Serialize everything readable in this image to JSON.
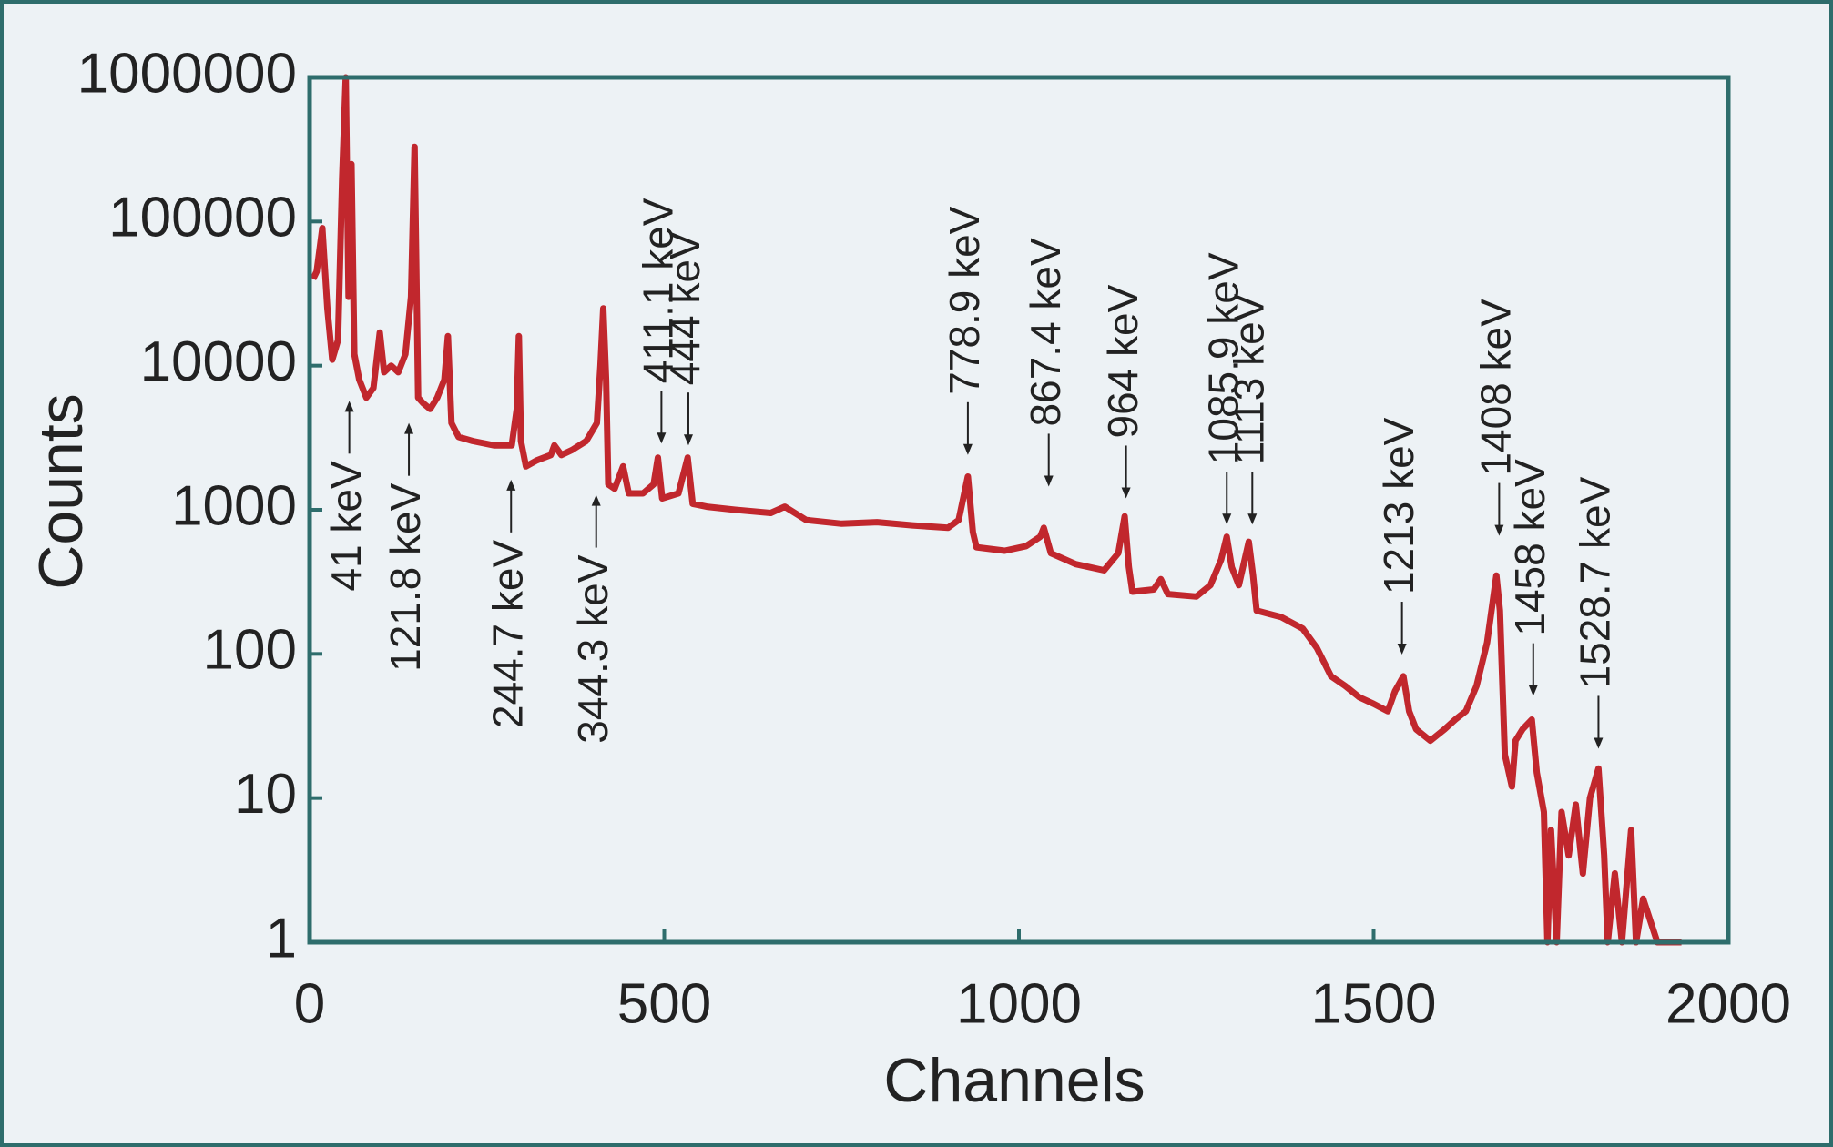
{
  "chart_data": {
    "type": "line",
    "xlabel": "Channels",
    "ylabel": "Counts",
    "log_y": true,
    "color": "#c1272d",
    "xlim": [
      0,
      2000
    ],
    "xticks": [
      0,
      500,
      1000,
      1500,
      2000
    ],
    "ylim": [
      1,
      1000000
    ],
    "yticks": [
      1,
      10,
      100,
      1000,
      10000,
      100000,
      1000000
    ],
    "x": [
      5,
      10,
      18,
      25,
      32,
      40,
      46,
      51,
      55,
      59,
      63,
      70,
      80,
      90,
      99,
      105,
      115,
      125,
      135,
      143,
      148,
      153,
      160,
      170,
      180,
      190,
      195,
      200,
      210,
      230,
      260,
      285,
      292,
      295,
      298,
      305,
      320,
      340,
      345,
      355,
      370,
      390,
      405,
      410,
      414,
      418,
      421,
      430,
      442,
      450,
      470,
      485,
      491,
      497,
      520,
      533,
      540,
      560,
      600,
      650,
      670,
      700,
      750,
      800,
      850,
      900,
      915,
      928,
      935,
      940,
      980,
      1010,
      1030,
      1035,
      1045,
      1080,
      1120,
      1140,
      1149,
      1155,
      1160,
      1190,
      1200,
      1210,
      1250,
      1270,
      1285,
      1293,
      1300,
      1310,
      1324,
      1330,
      1335,
      1370,
      1400,
      1420,
      1440,
      1460,
      1480,
      1500,
      1520,
      1530,
      1542,
      1550,
      1560,
      1580,
      1600,
      1615,
      1630,
      1645,
      1660,
      1673,
      1678,
      1685,
      1695,
      1700,
      1710,
      1723,
      1730,
      1740,
      1745,
      1750,
      1758,
      1765,
      1775,
      1785,
      1795,
      1805,
      1817,
      1825,
      1830,
      1840,
      1850,
      1863,
      1870,
      1880,
      1900,
      1934
    ],
    "values": [
      40000,
      45000,
      90000,
      25000,
      11000,
      15000,
      200000,
      1000000,
      30000,
      250000,
      12000,
      8000,
      6000,
      7000,
      17000,
      9000,
      10000,
      9000,
      12000,
      30000,
      330000,
      6000,
      5500,
      5000,
      6000,
      8000,
      16000,
      4000,
      3200,
      3000,
      2800,
      2800,
      5000,
      16000,
      3000,
      2000,
      2200,
      2400,
      2800,
      2400,
      2600,
      3000,
      4000,
      10000,
      25000,
      8000,
      1500,
      1400,
      2000,
      1300,
      1300,
      1500,
      2300,
      1200,
      1300,
      2300,
      1100,
      1050,
      1000,
      950,
      1050,
      850,
      800,
      820,
      780,
      750,
      850,
      1700,
      700,
      550,
      520,
      560,
      650,
      750,
      500,
      420,
      380,
      500,
      900,
      400,
      270,
      280,
      330,
      260,
      250,
      300,
      450,
      650,
      400,
      300,
      600,
      350,
      200,
      180,
      150,
      110,
      70,
      60,
      50,
      45,
      40,
      55,
      70,
      40,
      30,
      25,
      30,
      35,
      40,
      60,
      120,
      350,
      200,
      20,
      12,
      25,
      30,
      35,
      15,
      8,
      1,
      6,
      1,
      8,
      4,
      9,
      3,
      10,
      16,
      4,
      1,
      3,
      1,
      6,
      1,
      2,
      1,
      1
    ],
    "annotations": [
      {
        "text": "41 keV",
        "x": 56,
        "y": 5700,
        "arrow": "up"
      },
      {
        "text": "121.8 keV",
        "x": 140,
        "y": 4000,
        "arrow": "up"
      },
      {
        "text": "244.7 keV",
        "x": 284,
        "y": 1620,
        "arrow": "up"
      },
      {
        "text": "344.3 keV",
        "x": 404,
        "y": 1270,
        "arrow": "up"
      },
      {
        "text": "411.1 keV",
        "x": 496,
        "y": 2880,
        "arrow": "down"
      },
      {
        "text": "444 keV",
        "x": 534,
        "y": 2800,
        "arrow": "down"
      },
      {
        "text": "778.9 keV",
        "x": 928,
        "y": 2400,
        "arrow": "down"
      },
      {
        "text": "867.4 keV",
        "x": 1042,
        "y": 1450,
        "arrow": "down"
      },
      {
        "text": "964 keV",
        "x": 1151,
        "y": 1200,
        "arrow": "down"
      },
      {
        "text": "1085.9 keV",
        "x": 1293,
        "y": 790,
        "arrow": "down"
      },
      {
        "text": "1113 keV",
        "x": 1329,
        "y": 790,
        "arrow": "down"
      },
      {
        "text": "1213 keV",
        "x": 1540,
        "y": 99,
        "arrow": "down"
      },
      {
        "text": "1408 keV",
        "x": 1677,
        "y": 660,
        "arrow": "down"
      },
      {
        "text": "1458 keV",
        "x": 1725,
        "y": 51,
        "arrow": "down"
      },
      {
        "text": "1528.7 keV",
        "x": 1817,
        "y": 22,
        "arrow": "down"
      }
    ]
  }
}
